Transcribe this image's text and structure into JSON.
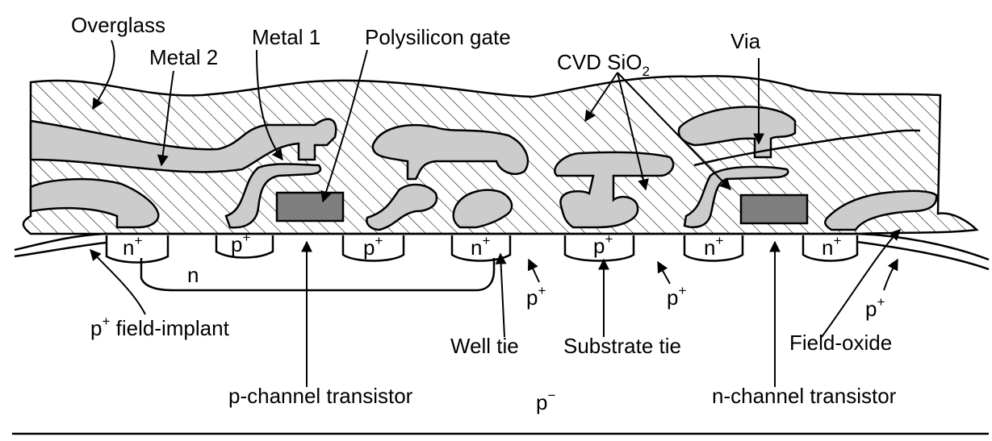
{
  "labels": {
    "overglass": "Overglass",
    "metal2": "Metal 2",
    "metal1": "Metal 1",
    "poly_gate": "Polysilicon gate",
    "cvd_main": "CVD SiO",
    "cvd_sub": "2",
    "via": "Via",
    "n_well": "n",
    "p_plus_base": "p",
    "plus_sup": "+",
    "minus_sup": "−",
    "n_base": "n",
    "p_field_implant_rest": " field-implant",
    "well_tie": "Well tie",
    "substrate_tie": "Substrate tie",
    "field_oxide": "Field-oxide",
    "p_channel": "p-channel transistor",
    "n_channel": "n-channel transistor",
    "p_minus_base": "p"
  },
  "colors": {
    "metal": "#cccccc",
    "poly": "#7f7f7f",
    "line": "#000000",
    "background": "#ffffff"
  }
}
